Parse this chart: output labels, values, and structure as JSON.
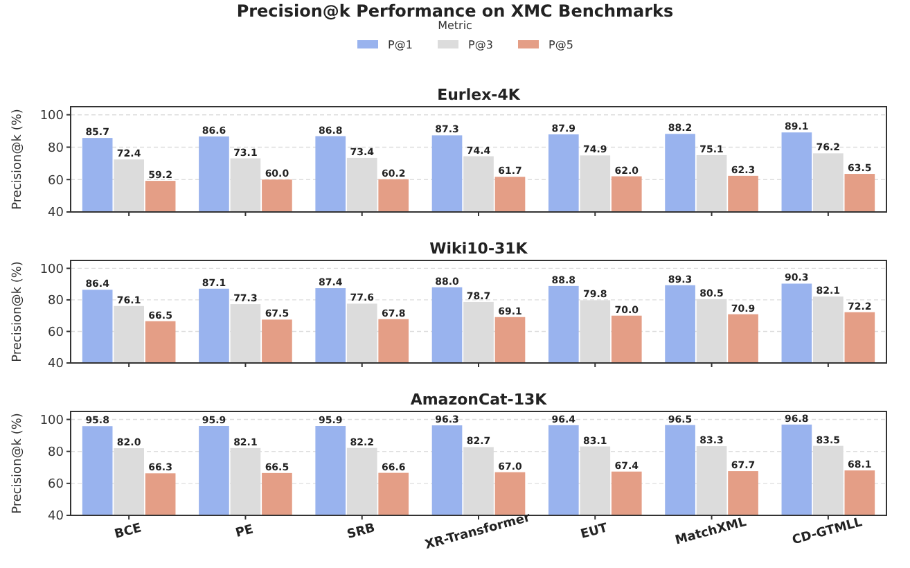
{
  "chart_data": [
    {
      "type": "bar",
      "title": "Eurlex-4K",
      "annotations": [
        "Precision@k Performance on XMC Benchmarks"
      ],
      "legend_title": "Metric",
      "legend": "top",
      "ylabel": "Precision@k (%)",
      "categories": [
        null,
        null,
        null,
        null,
        null,
        null,
        null
      ],
      "series": [
        {
          "name": "P@1",
          "color": "#99b3ee",
          "values": [
            85.7,
            86.6,
            86.8,
            87.3,
            87.9,
            88.2,
            89.1
          ],
          "value_labels": [
            "85.7",
            "86.6",
            "86.8",
            "87.3",
            "87.9",
            "88.2",
            "89.1"
          ]
        },
        {
          "name": "P@3",
          "color": "#dcdcdc",
          "values": [
            72.4,
            73.1,
            73.4,
            74.4,
            74.9,
            75.1,
            76.2
          ],
          "value_labels": [
            "72.4",
            "73.1",
            "73.4",
            "74.4",
            "74.9",
            "75.1",
            "76.2"
          ]
        },
        {
          "name": "P@5",
          "color": "#e49e86",
          "values": [
            59.2,
            60.0,
            60.2,
            61.7,
            62.0,
            62.3,
            63.5
          ],
          "value_labels": [
            "59.2",
            "60.0",
            "60.2",
            "61.7",
            "62.0",
            "62.3",
            "63.5"
          ]
        }
      ],
      "ylim": [
        40,
        105
      ],
      "yticks": [
        40,
        60,
        80,
        100
      ],
      "grid": "y"
    },
    {
      "type": "bar",
      "title": "Wiki10-31K",
      "ylabel": "Precision@k (%)",
      "categories": [
        null,
        null,
        null,
        null,
        null,
        null,
        null
      ],
      "series": [
        {
          "color": "#99b3ee",
          "values": [
            86.4,
            87.1,
            87.4,
            88.0,
            88.8,
            89.3,
            90.3
          ],
          "value_labels": [
            "86.4",
            "87.1",
            "87.4",
            "88.0",
            "88.8",
            "89.3",
            "90.3"
          ]
        },
        {
          "color": "#dcdcdc",
          "values": [
            76.1,
            77.3,
            77.6,
            78.7,
            79.8,
            80.5,
            82.1
          ],
          "value_labels": [
            "76.1",
            "77.3",
            "77.6",
            "78.7",
            "79.8",
            "80.5",
            "82.1"
          ]
        },
        {
          "color": "#e49e86",
          "values": [
            66.5,
            67.5,
            67.8,
            69.1,
            70.0,
            70.9,
            72.2
          ],
          "value_labels": [
            "66.5",
            "67.5",
            "67.8",
            "69.1",
            "70.0",
            "70.9",
            "72.2"
          ]
        }
      ],
      "ylim": [
        40,
        105
      ],
      "yticks": [
        40,
        60,
        80,
        100
      ],
      "grid": "y"
    },
    {
      "type": "bar",
      "title": "AmazonCat-13K",
      "ylabel": "Precision@k (%)",
      "categories": [
        "BCE",
        "PE",
        "SRB",
        "XR-Transformer",
        "EUT",
        "MatchXML",
        "CD-GTMLL"
      ],
      "series": [
        {
          "color": "#99b3ee",
          "values": [
            95.8,
            95.9,
            95.9,
            96.3,
            96.4,
            96.5,
            96.8
          ],
          "value_labels": [
            "95.8",
            "95.9",
            "95.9",
            "96.3",
            "96.4",
            "96.5",
            "96.8"
          ]
        },
        {
          "color": "#dcdcdc",
          "values": [
            82.0,
            82.1,
            82.2,
            82.7,
            83.1,
            83.3,
            83.5
          ],
          "value_labels": [
            "82.0",
            "82.1",
            "82.2",
            "82.7",
            "83.1",
            "83.3",
            "83.5"
          ]
        },
        {
          "color": "#e49e86",
          "values": [
            66.3,
            66.5,
            66.6,
            67.0,
            67.4,
            67.7,
            68.1
          ],
          "value_labels": [
            "66.3",
            "66.5",
            "66.6",
            "67.0",
            "67.4",
            "67.7",
            "68.1"
          ]
        }
      ],
      "ylim": [
        40,
        105
      ],
      "yticks": [
        40,
        60,
        80,
        100
      ],
      "grid": "y"
    }
  ]
}
